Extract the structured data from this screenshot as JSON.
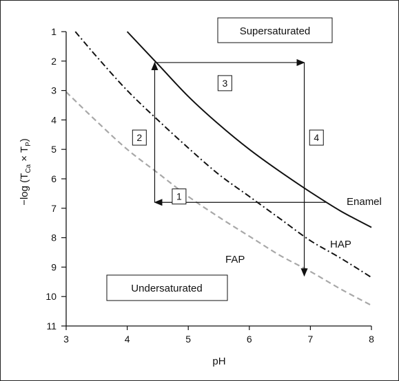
{
  "chart_data": {
    "type": "line",
    "xlabel": "pH",
    "ylabel_parts": {
      "prefix": "−log (T",
      "sub1": "Ca",
      "times": " × T",
      "sub2": "P",
      "suffix": ")"
    },
    "xlim": [
      3,
      8
    ],
    "ylim": [
      1,
      11
    ],
    "y_inverted": true,
    "x_ticks": [
      "3",
      "4",
      "5",
      "6",
      "7",
      "8"
    ],
    "y_ticks": [
      "1",
      "2",
      "3",
      "4",
      "5",
      "6",
      "7",
      "8",
      "9",
      "10",
      "11"
    ],
    "series": [
      {
        "name": "Enamel",
        "style": "solid",
        "color": "#111111",
        "x": [
          4.0,
          4.5,
          5.0,
          5.5,
          6.0,
          6.5,
          7.0,
          7.5,
          8.0
        ],
        "y": [
          1.0,
          2.1,
          3.2,
          4.15,
          5.0,
          5.75,
          6.45,
          7.1,
          7.65
        ]
      },
      {
        "name": "HAP",
        "style": "dashdot",
        "color": "#111111",
        "x": [
          3.15,
          3.5,
          4.0,
          4.5,
          5.0,
          5.5,
          6.0,
          6.5,
          7.0,
          7.5,
          8.0
        ],
        "y": [
          1.0,
          1.85,
          3.0,
          4.0,
          4.95,
          5.85,
          6.6,
          7.35,
          8.1,
          8.7,
          9.35
        ]
      },
      {
        "name": "FAP",
        "style": "dashed",
        "color": "#a8a8a8",
        "x": [
          3.0,
          3.5,
          4.0,
          4.5,
          5.0,
          5.5,
          6.0,
          6.5,
          7.0,
          7.5,
          8.0
        ],
        "y": [
          3.05,
          4.05,
          5.0,
          5.8,
          6.6,
          7.3,
          7.95,
          8.6,
          9.15,
          9.75,
          10.3
        ]
      }
    ],
    "arrows": [
      {
        "label": "1",
        "from": [
          7.25,
          6.8
        ],
        "to": [
          4.45,
          6.8
        ],
        "label_at": [
          4.85,
          6.6
        ]
      },
      {
        "label": "2",
        "from": [
          4.45,
          6.8
        ],
        "to": [
          4.45,
          2.05
        ],
        "label_at": [
          4.2,
          4.6
        ]
      },
      {
        "label": "3",
        "from": [
          4.45,
          2.05
        ],
        "to": [
          6.9,
          2.05
        ],
        "label_at": [
          5.6,
          2.75
        ]
      },
      {
        "label": "4",
        "from": [
          6.9,
          2.05
        ],
        "to": [
          6.9,
          9.3
        ],
        "label_at": [
          7.1,
          4.6
        ]
      }
    ],
    "annotations": {
      "supersaturated": "Supersaturated",
      "undersaturated": "Undersaturated",
      "enamel": "Enamel",
      "hap": "HAP",
      "fap": "FAP"
    }
  }
}
